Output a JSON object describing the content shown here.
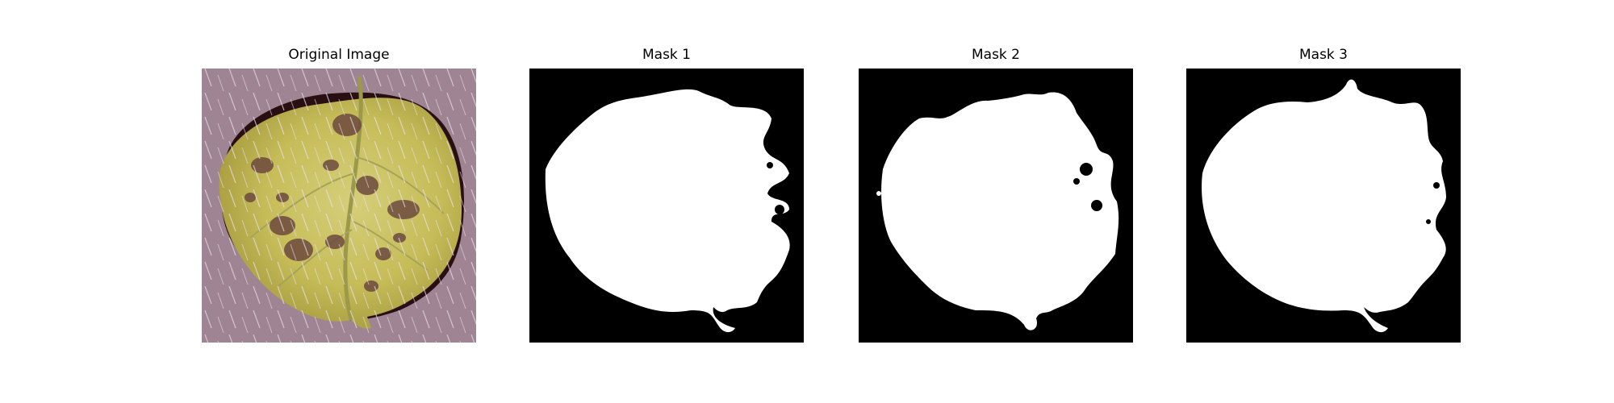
{
  "figure": {
    "panels": [
      {
        "title": "Original Image",
        "kind": "photo",
        "subject": "leaf-icon"
      },
      {
        "title": "Mask 1",
        "kind": "mask",
        "background": "#000000",
        "foreground": "#ffffff"
      },
      {
        "title": "Mask 2",
        "kind": "mask",
        "background": "#000000",
        "foreground": "#ffffff"
      },
      {
        "title": "Mask 3",
        "kind": "mask",
        "background": "#000000",
        "foreground": "#ffffff"
      }
    ],
    "colors": {
      "photo_background": "#a58a99",
      "leaf_yellow": "#c8c25c",
      "leaf_shadow": "#2a0f12",
      "disease_spots": "#6d4a3e",
      "mask_black": "#000000",
      "mask_white": "#ffffff"
    }
  }
}
